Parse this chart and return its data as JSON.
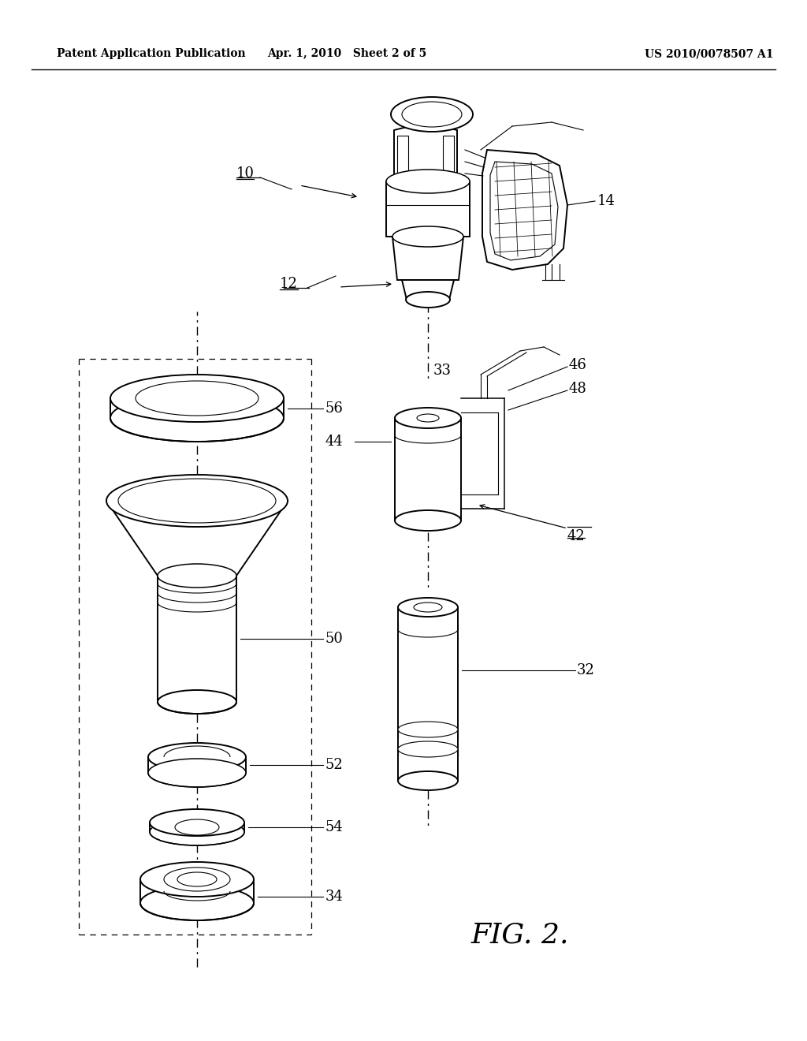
{
  "bg_color": "#ffffff",
  "header_left": "Patent Application Publication",
  "header_mid": "Apr. 1, 2010   Sheet 2 of 5",
  "header_right": "US 2010/0078507 A1",
  "fig_label": "FIG. 2.",
  "lw_main": 1.4,
  "lw_thin": 0.8,
  "lw_med": 1.1
}
